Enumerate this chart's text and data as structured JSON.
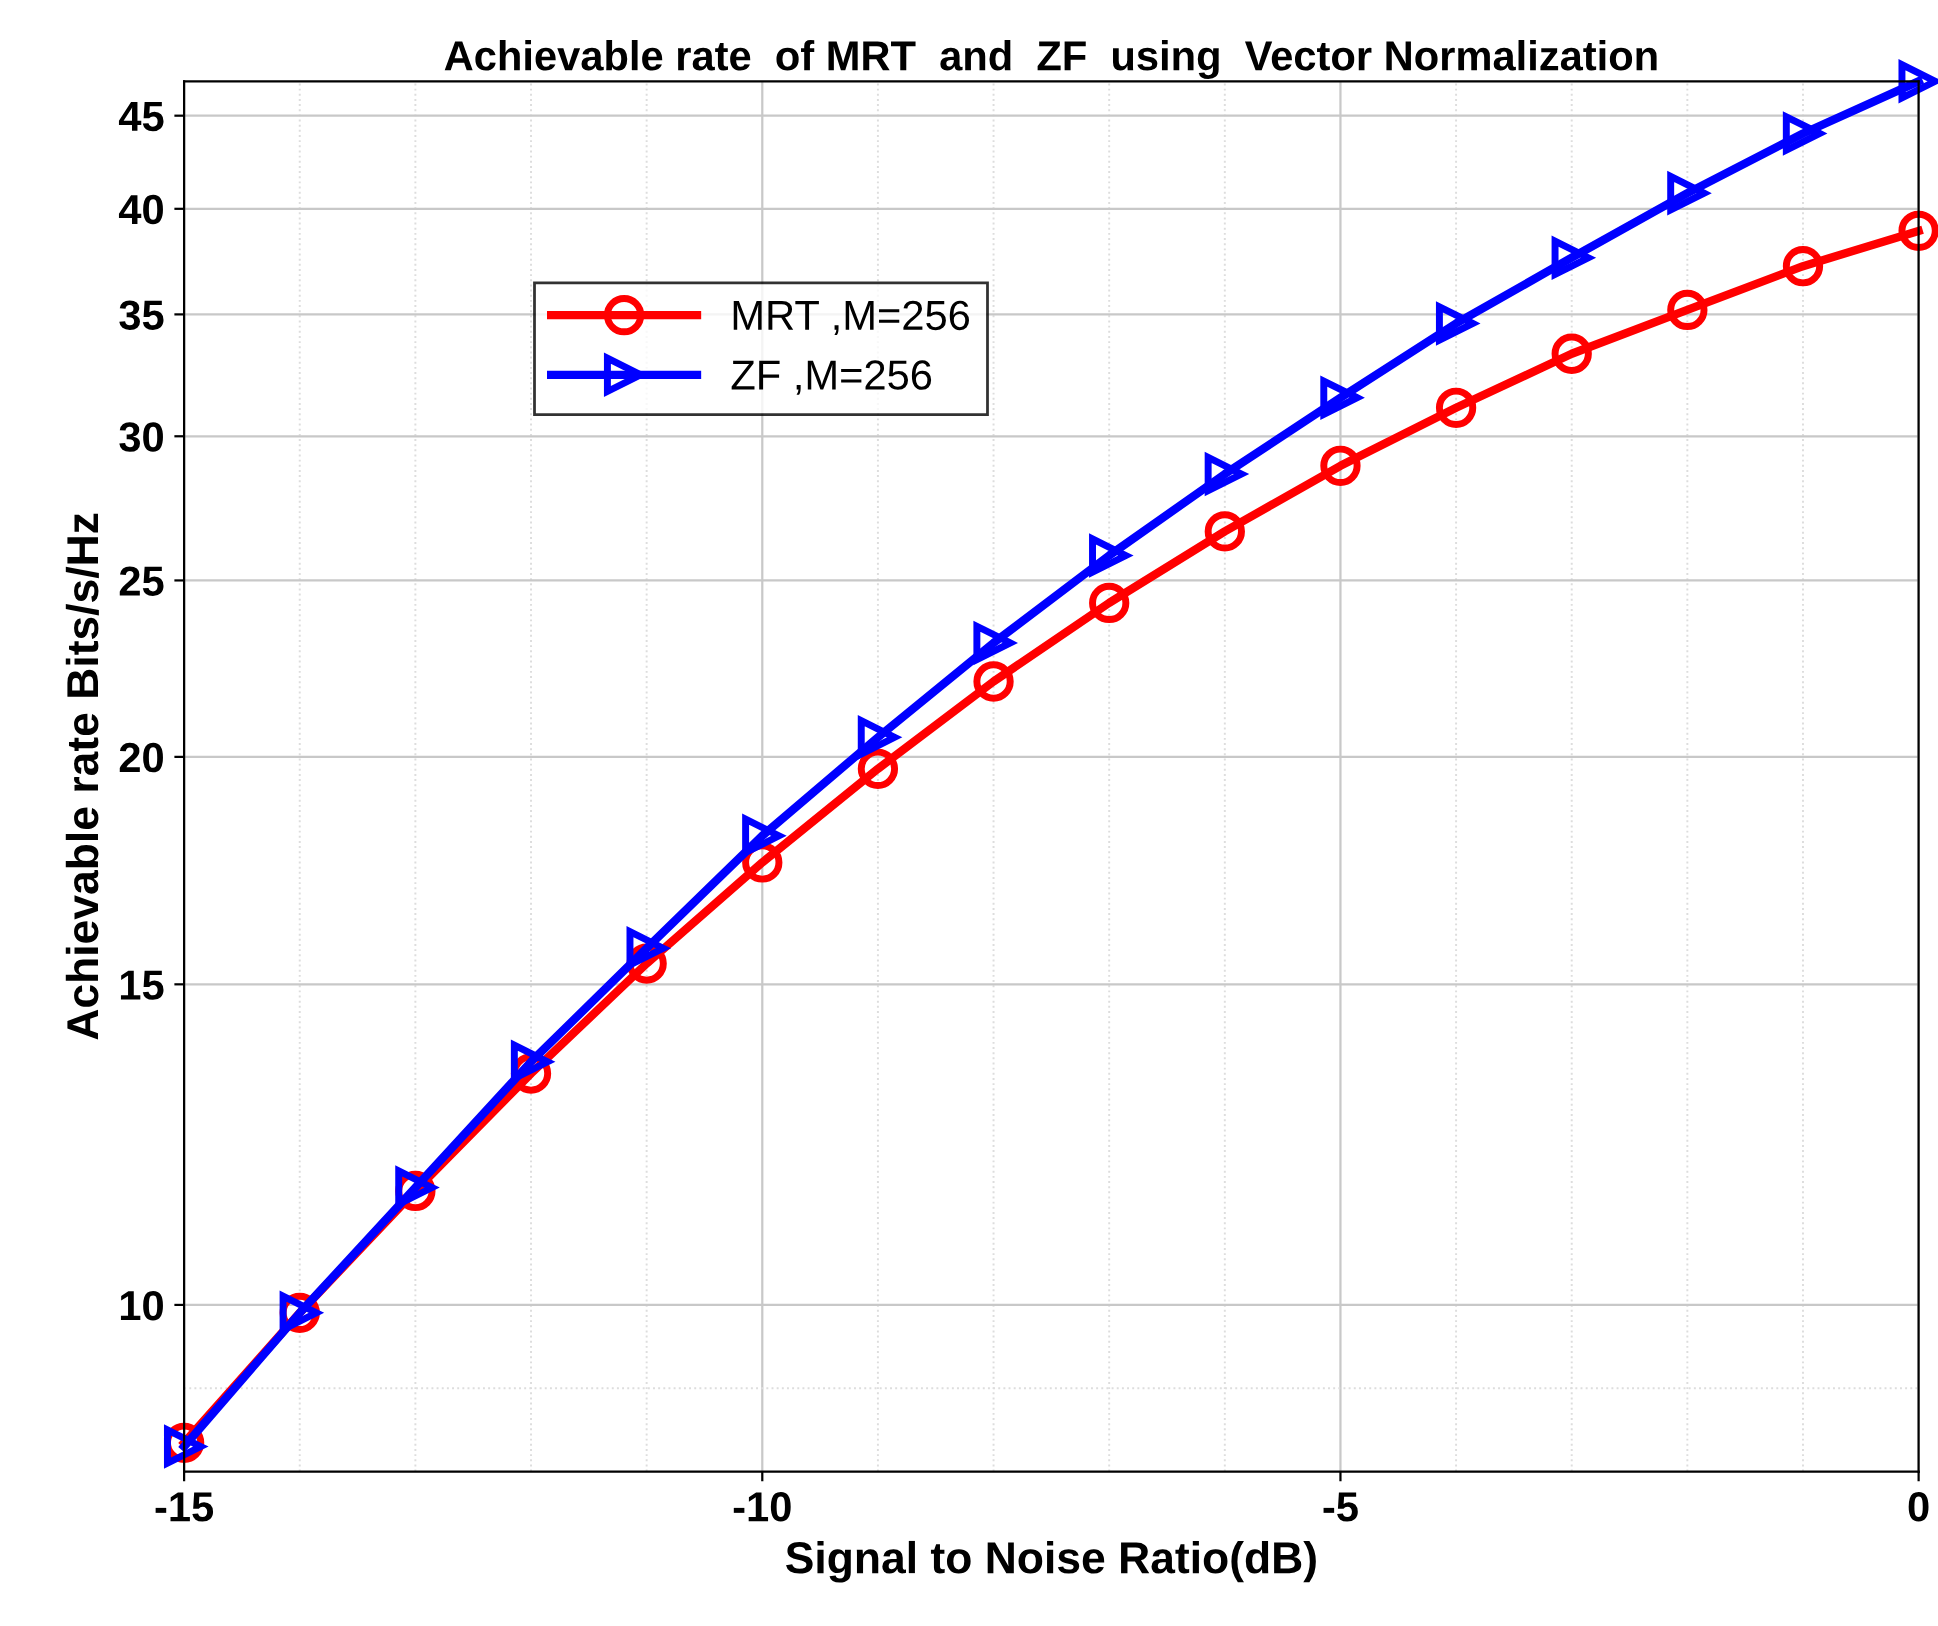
{
  "chart_data": {
    "type": "line",
    "title": "Achievable rate  of MRT  and  ZF  using  Vector Normalization",
    "xlabel": "Signal to Noise Ratio(dB)",
    "ylabel": "Achievable rate Bits/s/Hz",
    "x": [
      -15,
      -14,
      -13,
      -12,
      -11,
      -10,
      -9,
      -8,
      -7,
      -6,
      -5,
      -4,
      -3,
      -2,
      -1,
      0
    ],
    "series": [
      {
        "name": "MRT ,M=256",
        "color": "#ff0000",
        "marker": "circle",
        "values": [
          8.4,
          9.9,
          11.55,
          13.4,
          15.4,
          17.5,
          19.7,
          22.0,
          24.3,
          26.6,
          28.9,
          31.1,
          33.3,
          35.2,
          37.2,
          38.9
        ]
      },
      {
        "name": "ZF ,M=256",
        "color": "#0000ff",
        "marker": "triangle",
        "values": [
          8.36,
          9.9,
          11.6,
          13.6,
          15.7,
          18.1,
          20.5,
          23.1,
          25.8,
          28.6,
          31.5,
          34.6,
          37.6,
          40.8,
          44.0,
          47.0
        ]
      }
    ],
    "log": "y",
    "xlim": [
      -15,
      0
    ],
    "ylim": [
      8.1,
      47
    ],
    "xticks": [
      -15,
      -10,
      -5,
      0
    ],
    "yticks": [
      10,
      15,
      20,
      25,
      30,
      35,
      40,
      45
    ],
    "grid": true,
    "legend": "top left",
    "line_style": "solid"
  }
}
